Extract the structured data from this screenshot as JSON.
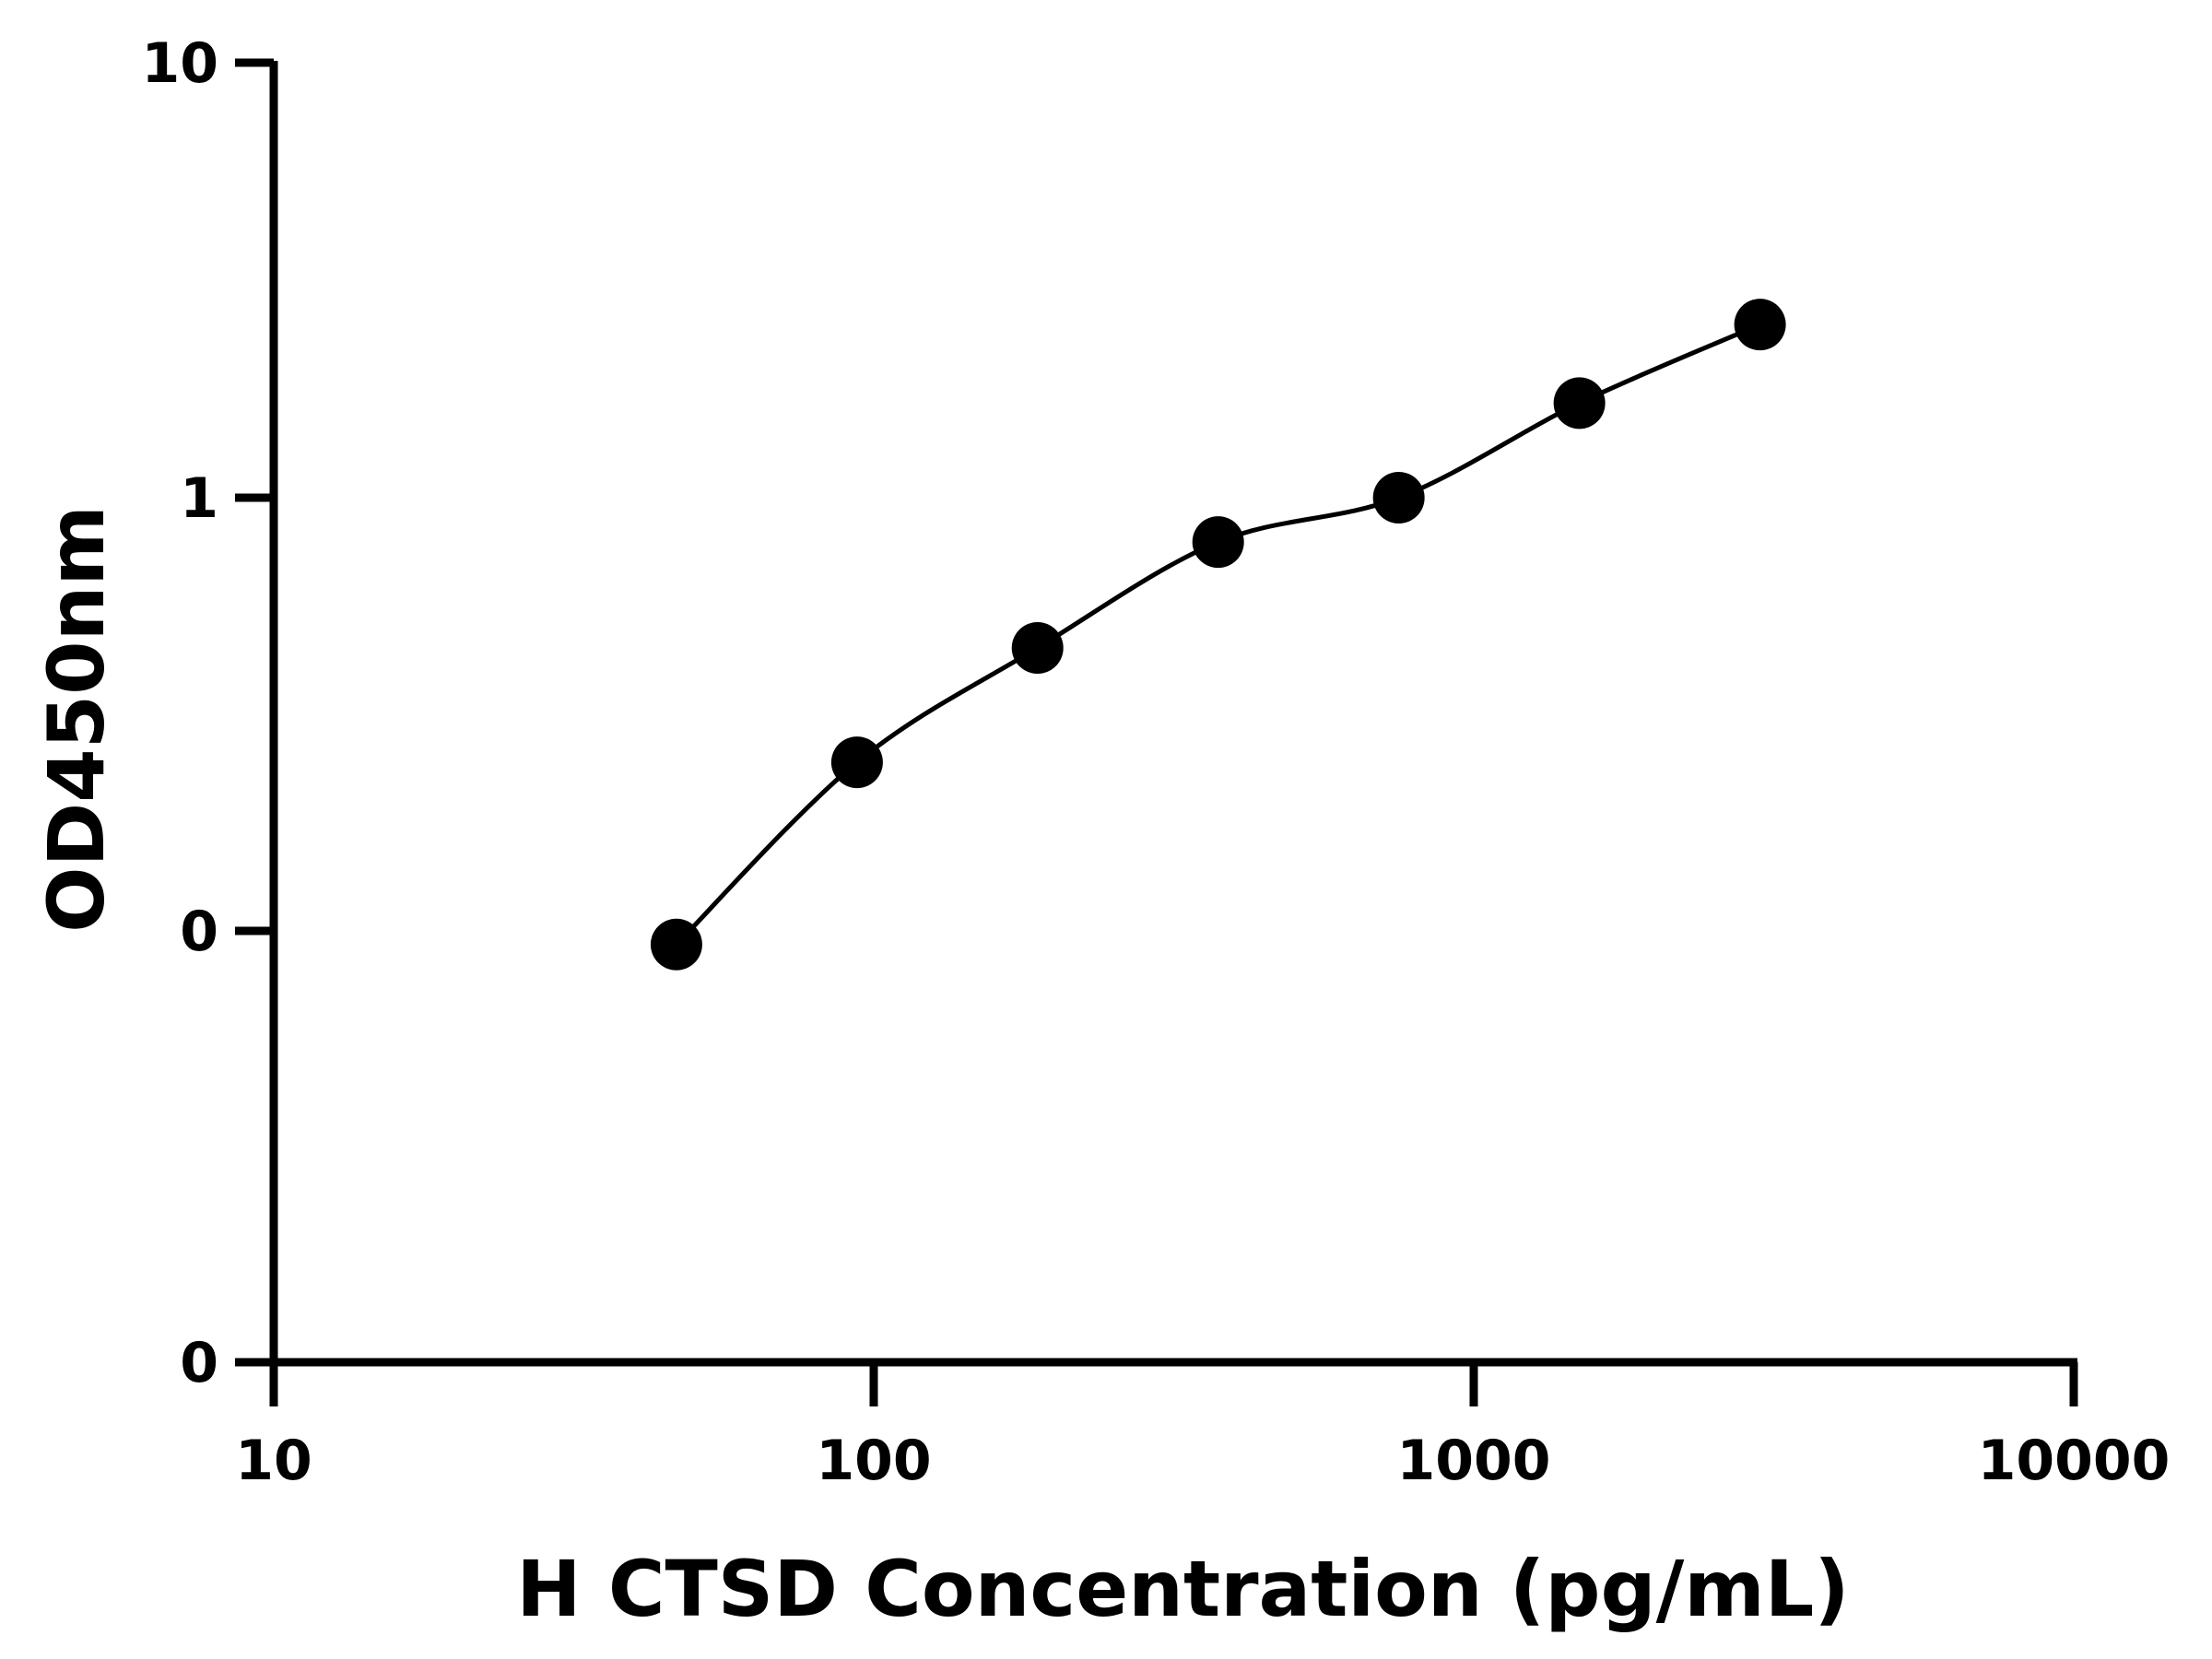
{
  "chart_data": {
    "type": "scatter",
    "title": "",
    "xlabel": "H CTSD Concentration (pg/mL)",
    "ylabel": "OD450nm",
    "x_scale": "log",
    "y_scale": "log",
    "xlim": [
      10,
      10000
    ],
    "x_ticks": [
      {
        "value": 10,
        "label": "10"
      },
      {
        "value": 100,
        "label": "100"
      },
      {
        "value": 1000,
        "label": "1000"
      },
      {
        "value": 10000,
        "label": "10000"
      }
    ],
    "y_ticks": [
      {
        "value": 0.01,
        "label": "0"
      },
      {
        "value": 0.1,
        "label": "0"
      },
      {
        "value": 1,
        "label": "1"
      },
      {
        "value": 10,
        "label": "10"
      }
    ],
    "grid": false,
    "legend": "none",
    "colors": {
      "marker": "#000000",
      "line": "#000000",
      "axis": "#000000"
    },
    "series": [
      {
        "x": [
          46.9,
          93.8,
          187.5,
          375,
          750,
          1500,
          3000
        ],
        "y": [
          0.093,
          0.245,
          0.45,
          0.79,
          1.0,
          1.65,
          2.5
        ],
        "fit_line": true
      }
    ]
  }
}
